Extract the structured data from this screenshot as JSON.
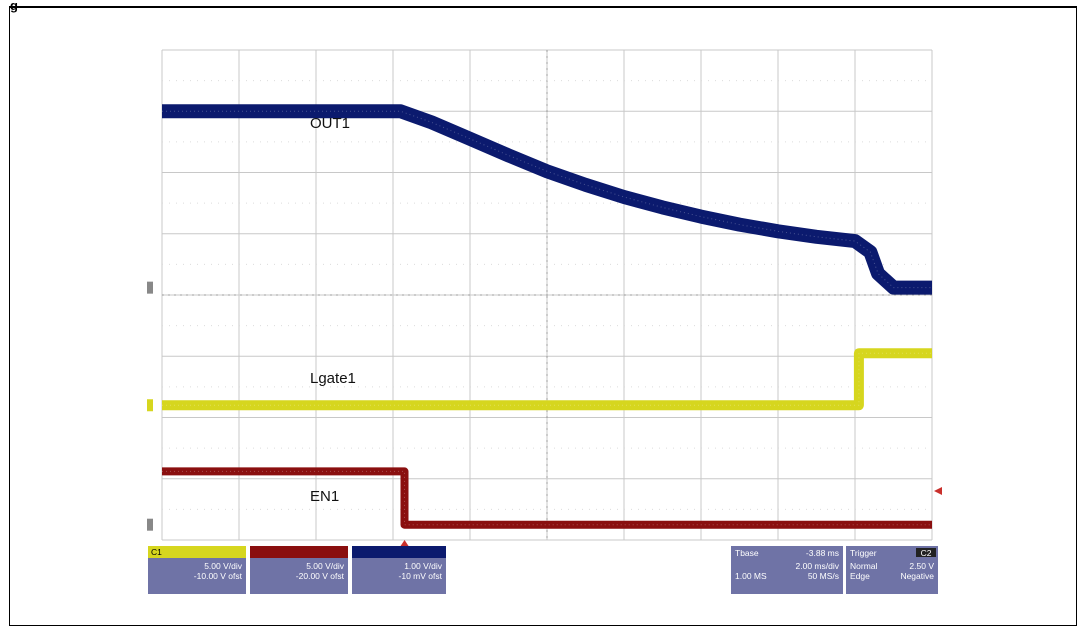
{
  "figure": {
    "corner_label": "g"
  },
  "colors": {
    "grid": "#c8c8c8",
    "ch1": "#d6d61e",
    "ch2": "#8a0f0f",
    "ch3": "#0b1a6e",
    "bar_bg": "#6f73a6",
    "bar_text": "#ffffff"
  },
  "chart_data": {
    "type": "line",
    "title": "",
    "grid": true,
    "x_divisions": 10,
    "y_divisions": 8,
    "trace_labels": [
      "OUT1",
      "Lgate1",
      "EN1"
    ],
    "series": [
      {
        "name": "OUT1",
        "channel": "C3",
        "x": [
          0,
          3.1,
          3.5,
          4,
          4.5,
          5,
          5.5,
          6,
          6.5,
          7,
          7.5,
          8,
          8.5,
          9.0,
          9.2,
          9.3,
          9.5,
          10
        ],
        "y": [
          3.0,
          3.0,
          2.82,
          2.55,
          2.28,
          2.02,
          1.8,
          1.6,
          1.43,
          1.28,
          1.15,
          1.04,
          0.95,
          0.88,
          0.7,
          0.35,
          0.12,
          0.12
        ]
      },
      {
        "name": "Lgate1",
        "channel": "C1",
        "x": [
          0,
          9.05,
          9.05,
          10
        ],
        "y": [
          -1.8,
          -1.8,
          -0.95,
          -0.95
        ]
      },
      {
        "name": "EN1",
        "channel": "C2",
        "x": [
          0,
          3.15,
          3.15,
          10
        ],
        "y": [
          -2.88,
          -2.88,
          -3.75,
          -3.75
        ]
      }
    ],
    "channels": [
      {
        "id": "C1",
        "name": "C1",
        "scale": "5.00 V/div",
        "offset": "-10.00 V ofst"
      },
      {
        "id": "C2",
        "name": "",
        "scale": "5.00 V/div",
        "offset": "-20.00 V ofst"
      },
      {
        "id": "C3",
        "name": "",
        "scale": "1.00 V/div",
        "offset": "-10 mV ofst"
      }
    ],
    "timebase": {
      "label": "Tbase",
      "value": "-3.88 ms",
      "per_div": "2.00 ms/div",
      "samples": "1.00 MS",
      "rate": "50 MS/s"
    },
    "trigger": {
      "label": "Trigger",
      "channel": "C2",
      "mode": "Normal",
      "level": "2.50 V",
      "type": "Edge",
      "slope": "Negative"
    }
  }
}
